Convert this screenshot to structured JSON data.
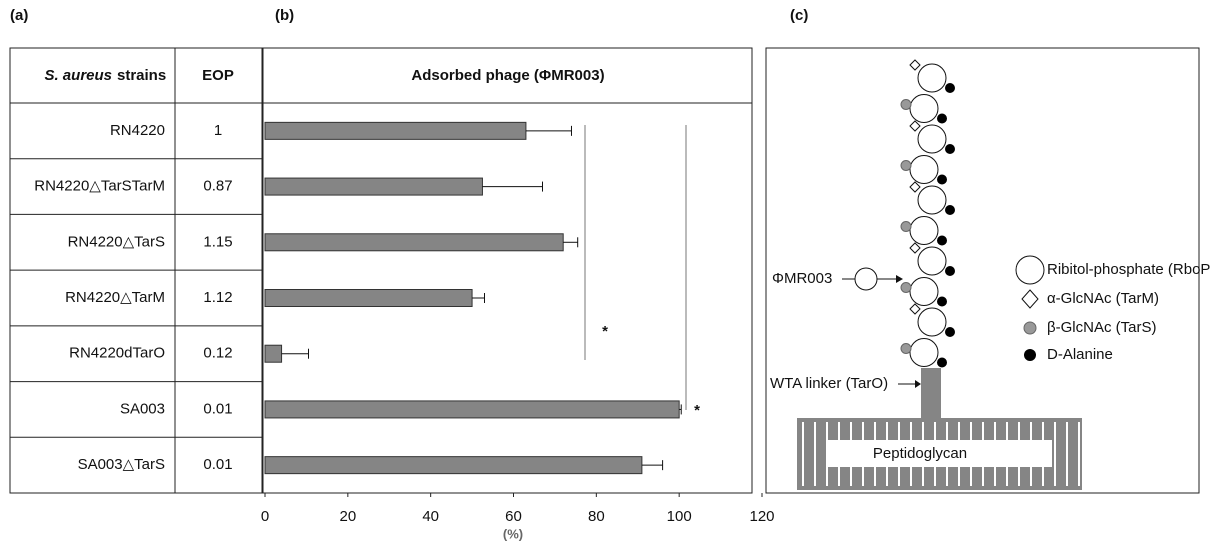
{
  "panels": [
    "(a)",
    "(b)",
    "(c)"
  ],
  "table": {
    "header": [
      [
        "S. aureus",
        "strains"
      ],
      "EOP"
    ],
    "rows": [
      [
        "RN4220",
        1
      ],
      [
        "RN4220△TarSTarM",
        0.87
      ],
      [
        "RN4220△TarS",
        1.15
      ],
      [
        "RN4220△TarM",
        1.12
      ],
      [
        "RN4220dTarO",
        0.12
      ],
      [
        "SA003",
        0.01
      ],
      [
        "SA003△TarS",
        0.01
      ]
    ]
  },
  "chart_data": {
    "type": "bar",
    "orientation": "horizontal",
    "title": "Adsorbed phage (ΦMR003)",
    "x_label": "(%)",
    "values": [
      63,
      52.5,
      72,
      50,
      4,
      100,
      91
    ],
    "errors": [
      11,
      14.5,
      3.5,
      3,
      6.5,
      0.5,
      5
    ],
    "color": "#858585",
    "xlim": [
      0,
      120
    ],
    "xticks": [
      0,
      20,
      40,
      60,
      80,
      100,
      120
    ],
    "annotations": [
      "*",
      "*"
    ]
  },
  "diagram": {
    "phage": "ΦMR003",
    "legend": [
      "Ribitol-phosphate (RboP)",
      "α-GlcNAc (TarM)",
      "β-GlcNAc (TarS)",
      "D-Alanine"
    ],
    "linker": "WTA linker (TarO)",
    "peptidoglycan": "Peptidoglycan"
  }
}
